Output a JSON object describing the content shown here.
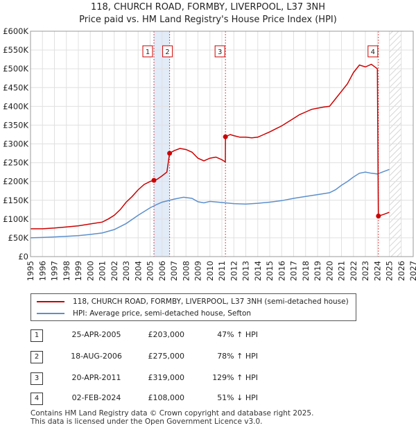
{
  "title": {
    "line1": "118, CHURCH ROAD, FORMBY, LIVERPOOL, L37 3NH",
    "line2": "Price paid vs. HM Land Registry's House Price Index (HPI)"
  },
  "chart_data": {
    "type": "line",
    "x_range": [
      1995,
      2027
    ],
    "ylim": [
      0,
      600000
    ],
    "x_ticks": [
      "1995",
      "1996",
      "1997",
      "1998",
      "1999",
      "2000",
      "2001",
      "2002",
      "2003",
      "2004",
      "2005",
      "2006",
      "2007",
      "2008",
      "2009",
      "2010",
      "2011",
      "2012",
      "2013",
      "2014",
      "2015",
      "2016",
      "2017",
      "2018",
      "2019",
      "2020",
      "2021",
      "2022",
      "2023",
      "2024",
      "2025",
      "2026",
      "2027"
    ],
    "y_ticks": [
      {
        "value": 0,
        "label": "£0"
      },
      {
        "value": 50000,
        "label": "£50K"
      },
      {
        "value": 100000,
        "label": "£100K"
      },
      {
        "value": 150000,
        "label": "£150K"
      },
      {
        "value": 200000,
        "label": "£200K"
      },
      {
        "value": 250000,
        "label": "£250K"
      },
      {
        "value": 300000,
        "label": "£300K"
      },
      {
        "value": 350000,
        "label": "£350K"
      },
      {
        "value": 400000,
        "label": "£400K"
      },
      {
        "value": 450000,
        "label": "£450K"
      },
      {
        "value": 500000,
        "label": "£500K"
      },
      {
        "value": 550000,
        "label": "£550K"
      },
      {
        "value": 600000,
        "label": "£600K"
      }
    ],
    "shaded_ranges": [
      [
        2005.32,
        2006.63
      ],
      [
        2011.3,
        2011.3
      ]
    ],
    "forecast_from": 2025.0,
    "series": [
      {
        "name": "118, CHURCH ROAD, FORMBY, LIVERPOOL, L37 3NH (semi-detached house)",
        "color": "#cc0000",
        "points": [
          [
            1995.0,
            74000
          ],
          [
            1996.0,
            74000
          ],
          [
            1997.0,
            76000
          ],
          [
            1998.0,
            79000
          ],
          [
            1999.0,
            82000
          ],
          [
            2000.0,
            87000
          ],
          [
            2001.0,
            92000
          ],
          [
            2001.5,
            100000
          ],
          [
            2002.0,
            110000
          ],
          [
            2002.5,
            125000
          ],
          [
            2003.0,
            145000
          ],
          [
            2003.5,
            160000
          ],
          [
            2004.0,
            178000
          ],
          [
            2004.5,
            192000
          ],
          [
            2005.0,
            200000
          ],
          [
            2005.32,
            203000
          ],
          [
            2005.6,
            206000
          ],
          [
            2006.0,
            215000
          ],
          [
            2006.4,
            225000
          ],
          [
            2006.63,
            275000
          ],
          [
            2007.0,
            282000
          ],
          [
            2007.5,
            288000
          ],
          [
            2008.0,
            285000
          ],
          [
            2008.5,
            278000
          ],
          [
            2009.0,
            262000
          ],
          [
            2009.5,
            255000
          ],
          [
            2010.0,
            262000
          ],
          [
            2010.5,
            265000
          ],
          [
            2011.0,
            258000
          ],
          [
            2011.29,
            252000
          ],
          [
            2011.3,
            319000
          ],
          [
            2011.7,
            325000
          ],
          [
            2012.0,
            322000
          ],
          [
            2012.5,
            318000
          ],
          [
            2013.0,
            318000
          ],
          [
            2013.5,
            316000
          ],
          [
            2014.0,
            318000
          ],
          [
            2014.5,
            325000
          ],
          [
            2015.0,
            332000
          ],
          [
            2015.5,
            340000
          ],
          [
            2016.0,
            348000
          ],
          [
            2016.5,
            358000
          ],
          [
            2017.0,
            368000
          ],
          [
            2017.5,
            378000
          ],
          [
            2018.0,
            385000
          ],
          [
            2018.5,
            392000
          ],
          [
            2019.0,
            395000
          ],
          [
            2019.5,
            398000
          ],
          [
            2020.0,
            400000
          ],
          [
            2020.5,
            420000
          ],
          [
            2021.0,
            440000
          ],
          [
            2021.5,
            460000
          ],
          [
            2022.0,
            490000
          ],
          [
            2022.5,
            510000
          ],
          [
            2023.0,
            505000
          ],
          [
            2023.5,
            512000
          ],
          [
            2024.0,
            500000
          ],
          [
            2024.09,
            108000
          ],
          [
            2024.5,
            112000
          ],
          [
            2025.0,
            118000
          ]
        ]
      },
      {
        "name": "HPI: Average price, semi-detached house, Sefton",
        "color": "#5b8fcc",
        "points": [
          [
            1995.0,
            50000
          ],
          [
            1996.0,
            51000
          ],
          [
            1997.0,
            52500
          ],
          [
            1998.0,
            54000
          ],
          [
            1999.0,
            56000
          ],
          [
            2000.0,
            59000
          ],
          [
            2001.0,
            63000
          ],
          [
            2002.0,
            72000
          ],
          [
            2003.0,
            88000
          ],
          [
            2004.0,
            110000
          ],
          [
            2005.0,
            130000
          ],
          [
            2005.5,
            138000
          ],
          [
            2006.0,
            145000
          ],
          [
            2007.0,
            153000
          ],
          [
            2007.8,
            158000
          ],
          [
            2008.5,
            155000
          ],
          [
            2009.0,
            146000
          ],
          [
            2009.5,
            143000
          ],
          [
            2010.0,
            147000
          ],
          [
            2011.0,
            144000
          ],
          [
            2012.0,
            141000
          ],
          [
            2013.0,
            140000
          ],
          [
            2014.0,
            142000
          ],
          [
            2015.0,
            145000
          ],
          [
            2016.0,
            149000
          ],
          [
            2017.0,
            155000
          ],
          [
            2018.0,
            160000
          ],
          [
            2019.0,
            165000
          ],
          [
            2020.0,
            170000
          ],
          [
            2020.5,
            178000
          ],
          [
            2021.0,
            190000
          ],
          [
            2021.5,
            200000
          ],
          [
            2022.0,
            212000
          ],
          [
            2022.5,
            222000
          ],
          [
            2023.0,
            225000
          ],
          [
            2023.5,
            222000
          ],
          [
            2024.0,
            220000
          ],
          [
            2024.5,
            226000
          ],
          [
            2025.0,
            232000
          ]
        ]
      }
    ],
    "transactions": [
      {
        "label": "1",
        "x": 2005.32,
        "y": 203000
      },
      {
        "label": "2",
        "x": 2006.63,
        "y": 275000
      },
      {
        "label": "3",
        "x": 2011.3,
        "y": 319000
      },
      {
        "label": "4",
        "x": 2024.09,
        "y": 108000
      }
    ]
  },
  "legend": {
    "property": "118, CHURCH ROAD, FORMBY, LIVERPOOL, L37 3NH (semi-detached house)",
    "hpi": "HPI: Average price, semi-detached house, Sefton",
    "property_color": "#cc0000",
    "hpi_color": "#5b8fcc"
  },
  "table": [
    {
      "num": "1",
      "date": "25-APR-2005",
      "price": "£203,000",
      "hpi": "47% ↑ HPI"
    },
    {
      "num": "2",
      "date": "18-AUG-2006",
      "price": "£275,000",
      "hpi": "78% ↑ HPI"
    },
    {
      "num": "3",
      "date": "20-APR-2011",
      "price": "£319,000",
      "hpi": "129% ↑ HPI"
    },
    {
      "num": "4",
      "date": "02-FEB-2024",
      "price": "£108,000",
      "hpi": "51% ↓ HPI"
    }
  ],
  "footer": {
    "line1": "Contains HM Land Registry data © Crown copyright and database right 2025.",
    "line2": "This data is licensed under the Open Government Licence v3.0."
  }
}
